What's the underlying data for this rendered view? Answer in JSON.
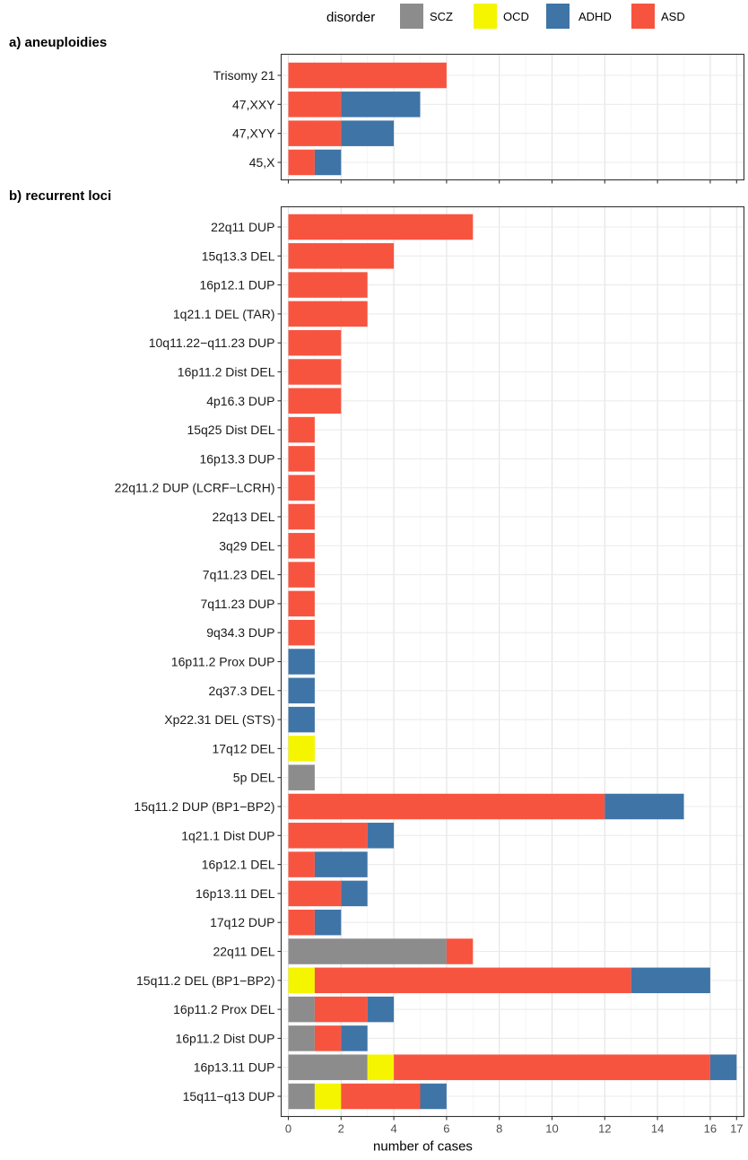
{
  "chart_data": {
    "type": "bar",
    "orientation": "horizontal",
    "stacked": true,
    "xlabel": "number of cases",
    "xticks": [
      0,
      2,
      4,
      6,
      8,
      10,
      12,
      14,
      16,
      17
    ],
    "xlim": [
      0,
      17
    ],
    "grid": true,
    "legend": {
      "title": "disorder",
      "position": "top",
      "entries": [
        {
          "name": "SCZ",
          "color": "#8c8c8c"
        },
        {
          "name": "OCD",
          "color": "#f5f500"
        },
        {
          "name": "ADHD",
          "color": "#3f74a6"
        },
        {
          "name": "ASD",
          "color": "#f75440"
        }
      ]
    },
    "series_order": [
      "SCZ",
      "OCD",
      "ASD",
      "ADHD"
    ],
    "colors": {
      "SCZ": "#8c8c8c",
      "OCD": "#f5f500",
      "ADHD": "#3f74a6",
      "ASD": "#f75440"
    },
    "panels": [
      {
        "title": "a) aneuploidies",
        "rows": [
          {
            "label": "Trisomy 21",
            "SCZ": 0,
            "OCD": 0,
            "ASD": 6,
            "ADHD": 0
          },
          {
            "label": "47,XXY",
            "SCZ": 0,
            "OCD": 0,
            "ASD": 2,
            "ADHD": 3
          },
          {
            "label": "47,XYY",
            "SCZ": 0,
            "OCD": 0,
            "ASD": 2,
            "ADHD": 2
          },
          {
            "label": "45,X",
            "SCZ": 0,
            "OCD": 0,
            "ASD": 1,
            "ADHD": 1
          }
        ]
      },
      {
        "title": "b) recurrent loci",
        "rows": [
          {
            "label": "22q11 DUP",
            "SCZ": 0,
            "OCD": 0,
            "ASD": 7,
            "ADHD": 0
          },
          {
            "label": "15q13.3 DEL",
            "SCZ": 0,
            "OCD": 0,
            "ASD": 4,
            "ADHD": 0
          },
          {
            "label": "16p12.1 DUP",
            "SCZ": 0,
            "OCD": 0,
            "ASD": 3,
            "ADHD": 0
          },
          {
            "label": "1q21.1 DEL (TAR)",
            "SCZ": 0,
            "OCD": 0,
            "ASD": 3,
            "ADHD": 0
          },
          {
            "label": "10q11.22−q11.23 DUP",
            "SCZ": 0,
            "OCD": 0,
            "ASD": 2,
            "ADHD": 0
          },
          {
            "label": "16p11.2 Dist DEL",
            "SCZ": 0,
            "OCD": 0,
            "ASD": 2,
            "ADHD": 0
          },
          {
            "label": "4p16.3 DUP",
            "SCZ": 0,
            "OCD": 0,
            "ASD": 2,
            "ADHD": 0
          },
          {
            "label": "15q25 Dist DEL",
            "SCZ": 0,
            "OCD": 0,
            "ASD": 1,
            "ADHD": 0
          },
          {
            "label": "16p13.3 DUP",
            "SCZ": 0,
            "OCD": 0,
            "ASD": 1,
            "ADHD": 0
          },
          {
            "label": "22q11.2 DUP (LCRF−LCRH)",
            "SCZ": 0,
            "OCD": 0,
            "ASD": 1,
            "ADHD": 0
          },
          {
            "label": "22q13 DEL",
            "SCZ": 0,
            "OCD": 0,
            "ASD": 1,
            "ADHD": 0
          },
          {
            "label": "3q29 DEL",
            "SCZ": 0,
            "OCD": 0,
            "ASD": 1,
            "ADHD": 0
          },
          {
            "label": "7q11.23 DEL",
            "SCZ": 0,
            "OCD": 0,
            "ASD": 1,
            "ADHD": 0
          },
          {
            "label": "7q11.23 DUP",
            "SCZ": 0,
            "OCD": 0,
            "ASD": 1,
            "ADHD": 0
          },
          {
            "label": "9q34.3 DUP",
            "SCZ": 0,
            "OCD": 0,
            "ASD": 1,
            "ADHD": 0
          },
          {
            "label": "16p11.2 Prox DUP",
            "SCZ": 0,
            "OCD": 0,
            "ASD": 0,
            "ADHD": 1
          },
          {
            "label": "2q37.3 DEL",
            "SCZ": 0,
            "OCD": 0,
            "ASD": 0,
            "ADHD": 1
          },
          {
            "label": "Xp22.31 DEL (STS)",
            "SCZ": 0,
            "OCD": 0,
            "ASD": 0,
            "ADHD": 1
          },
          {
            "label": "17q12 DEL",
            "SCZ": 0,
            "OCD": 1,
            "ASD": 0,
            "ADHD": 0
          },
          {
            "label": "5p DEL",
            "SCZ": 1,
            "OCD": 0,
            "ASD": 0,
            "ADHD": 0
          },
          {
            "label": "15q11.2 DUP (BP1−BP2)",
            "SCZ": 0,
            "OCD": 0,
            "ASD": 12,
            "ADHD": 3
          },
          {
            "label": "1q21.1 Dist DUP",
            "SCZ": 0,
            "OCD": 0,
            "ASD": 3,
            "ADHD": 1
          },
          {
            "label": "16p12.1 DEL",
            "SCZ": 0,
            "OCD": 0,
            "ASD": 1,
            "ADHD": 2
          },
          {
            "label": "16p13.11 DEL",
            "SCZ": 0,
            "OCD": 0,
            "ASD": 2,
            "ADHD": 1
          },
          {
            "label": "17q12 DUP",
            "SCZ": 0,
            "OCD": 0,
            "ASD": 1,
            "ADHD": 1
          },
          {
            "label": "22q11 DEL",
            "SCZ": 6,
            "OCD": 0,
            "ASD": 1,
            "ADHD": 0
          },
          {
            "label": "15q11.2 DEL (BP1−BP2)",
            "SCZ": 0,
            "OCD": 1,
            "ASD": 12,
            "ADHD": 3
          },
          {
            "label": "16p11.2 Prox DEL",
            "SCZ": 1,
            "OCD": 0,
            "ASD": 2,
            "ADHD": 1
          },
          {
            "label": "16p11.2 Dist DUP",
            "SCZ": 1,
            "OCD": 0,
            "ASD": 1,
            "ADHD": 1
          },
          {
            "label": "16p13.11 DUP",
            "SCZ": 3,
            "OCD": 1,
            "ASD": 12,
            "ADHD": 1
          },
          {
            "label": "15q11−q13 DUP",
            "SCZ": 1,
            "OCD": 1,
            "ASD": 3,
            "ADHD": 1
          }
        ]
      }
    ]
  }
}
